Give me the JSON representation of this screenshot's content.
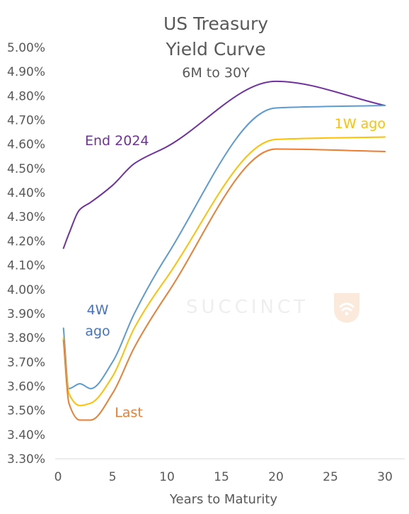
{
  "chart_data": {
    "type": "line",
    "title": "US Treasury",
    "title2": "Yield Curve",
    "subtitle": "6M to 30Y",
    "xlabel": "Years to Maturity",
    "xlim": [
      0,
      31
    ],
    "ylim": [
      3.3,
      5.0
    ],
    "x_ticks": [
      0,
      5,
      10,
      15,
      20,
      25,
      30
    ],
    "x_tick_labels": [
      "0",
      "5",
      "10",
      "15",
      "20",
      "25",
      "30"
    ],
    "y_ticks": [
      3.3,
      3.4,
      3.5,
      3.6,
      3.7,
      3.8,
      3.9,
      4.0,
      4.1,
      4.2,
      4.3,
      4.4,
      4.5,
      4.6,
      4.7,
      4.8,
      4.9,
      5.0
    ],
    "y_tick_labels": [
      "3.30%",
      "3.40%",
      "3.50%",
      "3.60%",
      "3.70%",
      "3.80%",
      "3.90%",
      "4.00%",
      "4.10%",
      "4.20%",
      "4.30%",
      "4.40%",
      "4.50%",
      "4.60%",
      "4.70%",
      "4.80%",
      "4.90%",
      "5.00%"
    ],
    "grid": false,
    "series": [
      {
        "name": "End 2024",
        "color": "#7030a0",
        "x": [
          0.5,
          1,
          2,
          3,
          5,
          7,
          10,
          20,
          30
        ],
        "y": [
          4.17,
          4.23,
          4.33,
          4.36,
          4.43,
          4.52,
          4.59,
          4.86,
          4.76
        ]
      },
      {
        "name": "4W ago",
        "label_lines": [
          "4W",
          "ago"
        ],
        "color": "#5b9bd5",
        "label_color": "#4472c4",
        "x": [
          0.5,
          1,
          2,
          3,
          5,
          7,
          10,
          20,
          30
        ],
        "y": [
          3.84,
          3.59,
          3.61,
          3.59,
          3.7,
          3.9,
          4.14,
          4.75,
          4.76
        ]
      },
      {
        "name": "1W ago",
        "color": "#ffc000",
        "x": [
          0.5,
          1,
          2,
          3,
          5,
          7,
          10,
          20,
          30
        ],
        "y": [
          3.8,
          3.57,
          3.52,
          3.53,
          3.64,
          3.84,
          4.05,
          4.62,
          4.63
        ]
      },
      {
        "name": "Last",
        "color": "#ed7d31",
        "x": [
          0.5,
          1,
          2,
          3,
          5,
          7,
          10,
          20,
          30
        ],
        "y": [
          3.79,
          3.53,
          3.46,
          3.46,
          3.57,
          3.76,
          3.98,
          4.58,
          4.57
        ]
      }
    ],
    "watermark": "SUCCINCT"
  }
}
